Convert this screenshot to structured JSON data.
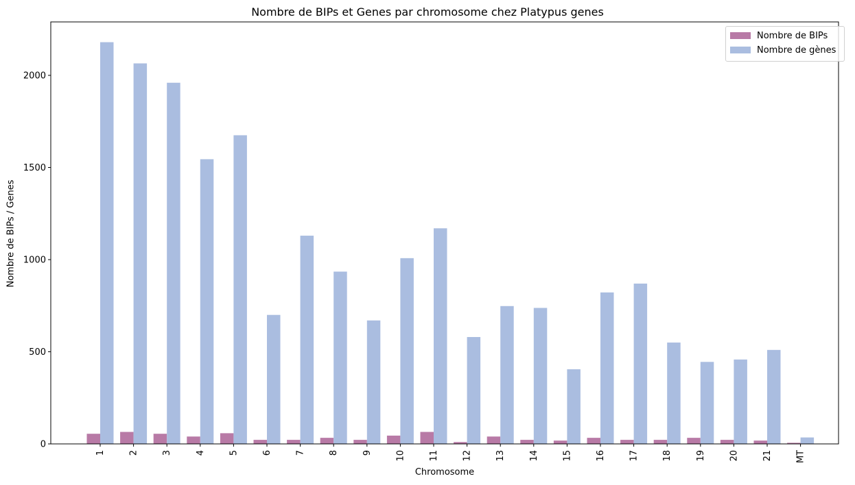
{
  "chart_data": {
    "type": "bar",
    "title": "Nombre de BIPs et Genes par chromosome chez Platypus genes",
    "xlabel": "Chromosome",
    "ylabel": "Nombre de BIPs / Genes",
    "categories": [
      "1",
      "2",
      "3",
      "4",
      "5",
      "6",
      "7",
      "8",
      "9",
      "10",
      "11",
      "12",
      "13",
      "14",
      "15",
      "16",
      "17",
      "18",
      "19",
      "20",
      "21",
      "MT"
    ],
    "series": [
      {
        "name": "Nombre de BIPs",
        "color": "#b87aa6",
        "values": [
          55,
          65,
          55,
          40,
          58,
          22,
          22,
          33,
          22,
          45,
          65,
          10,
          40,
          22,
          18,
          33,
          22,
          22,
          33,
          22,
          18,
          6
        ]
      },
      {
        "name": "Nombre de gènes",
        "color": "#aabde0",
        "values": [
          2180,
          2065,
          1960,
          1545,
          1675,
          700,
          1130,
          935,
          670,
          1008,
          1170,
          580,
          748,
          738,
          405,
          822,
          870,
          550,
          445,
          458,
          510,
          35
        ]
      }
    ],
    "yticks": [
      0,
      500,
      1000,
      1500,
      2000
    ],
    "ylim": [
      0,
      2290
    ],
    "legend": "top-right",
    "grid": false
  }
}
